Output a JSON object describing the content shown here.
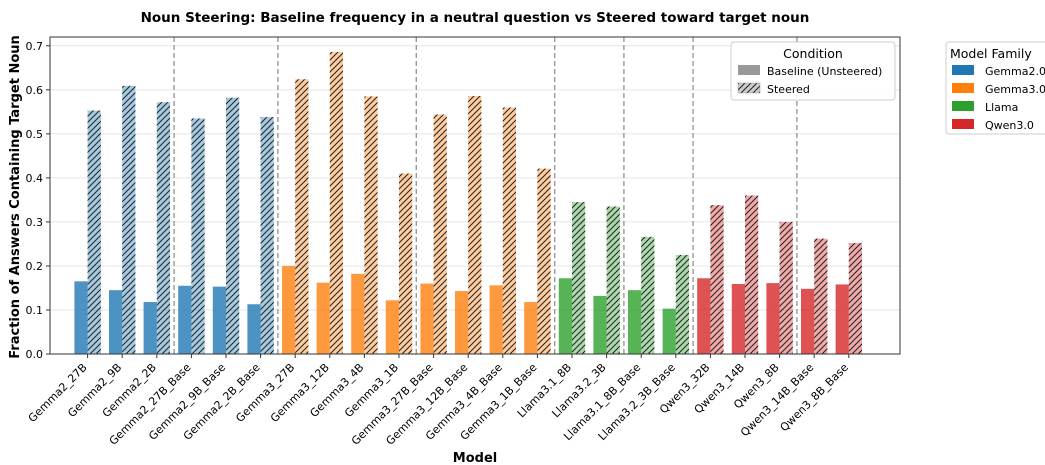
{
  "chart_data": {
    "type": "bar",
    "title": "Noun Steering: Baseline frequency in a neutral question vs Steered toward target noun",
    "xlabel": "Model",
    "ylabel": "Fraction of Answers Containing Target Noun",
    "ylim": [
      0,
      0.72
    ],
    "yticks": [
      "0.0",
      "0.1",
      "0.2",
      "0.3",
      "0.4",
      "0.5",
      "0.6",
      "0.7"
    ],
    "grid": "horizontal, light",
    "categories": [
      "Gemma2_27B",
      "Gemma2_9B",
      "Gemma2_2B",
      "Gemma2_27B_Base",
      "Gemma2_9B_Base",
      "Gemma2_2B_Base",
      "Gemma3_27B",
      "Gemma3_12B",
      "Gemma3_4B",
      "Gemma3_1B",
      "Gemma3_27B_Base",
      "Gemma3_12B_Base",
      "Gemma3_4B_Base",
      "Gemma3_1B_Base",
      "Llama3.1_8B",
      "Llama3.2_3B",
      "Llama3.1_8B_Base",
      "Llama3.2_3B_Base",
      "Qwen3_32B",
      "Qwen3_14B",
      "Qwen3_8B",
      "Qwen3_14B_Base",
      "Qwen3_8B_Base"
    ],
    "families": [
      "Gemma2.0",
      "Gemma2.0",
      "Gemma2.0",
      "Gemma2.0",
      "Gemma2.0",
      "Gemma2.0",
      "Gemma3.0",
      "Gemma3.0",
      "Gemma3.0",
      "Gemma3.0",
      "Gemma3.0",
      "Gemma3.0",
      "Gemma3.0",
      "Gemma3.0",
      "Llama",
      "Llama",
      "Llama",
      "Llama",
      "Qwen3.0",
      "Qwen3.0",
      "Qwen3.0",
      "Qwen3.0",
      "Qwen3.0"
    ],
    "series": [
      {
        "name": "Baseline (Unsteered)",
        "values": [
          0.165,
          0.145,
          0.118,
          0.155,
          0.153,
          0.113,
          0.2,
          0.162,
          0.182,
          0.122,
          0.16,
          0.143,
          0.156,
          0.118,
          0.172,
          0.132,
          0.145,
          0.103,
          0.172,
          0.159,
          0.161,
          0.148,
          0.158
        ]
      },
      {
        "name": "Steered",
        "values": [
          0.553,
          0.609,
          0.572,
          0.535,
          0.582,
          0.538,
          0.624,
          0.686,
          0.585,
          0.41,
          0.544,
          0.586,
          0.56,
          0.421,
          0.345,
          0.335,
          0.266,
          0.225,
          0.338,
          0.36,
          0.3,
          0.262,
          0.252
        ]
      }
    ],
    "group_separators_after": [
      2,
      5,
      9,
      13,
      15,
      17,
      20
    ],
    "legend_condition": {
      "title": "Condition",
      "entries": [
        "Baseline (Unsteered)",
        "Steered"
      ],
      "placement": "top-right inside plot"
    },
    "legend_family": {
      "title": "Model Family",
      "entries": [
        "Gemma2.0",
        "Gemma3.0",
        "Llama",
        "Qwen3.0"
      ],
      "placement": "outside right"
    },
    "colors": {
      "Gemma2.0": "#1f77b4",
      "Gemma3.0": "#ff7f0e",
      "Llama": "#2ca02c",
      "Qwen3.0": "#d62728",
      "neutral": "#999999"
    }
  }
}
